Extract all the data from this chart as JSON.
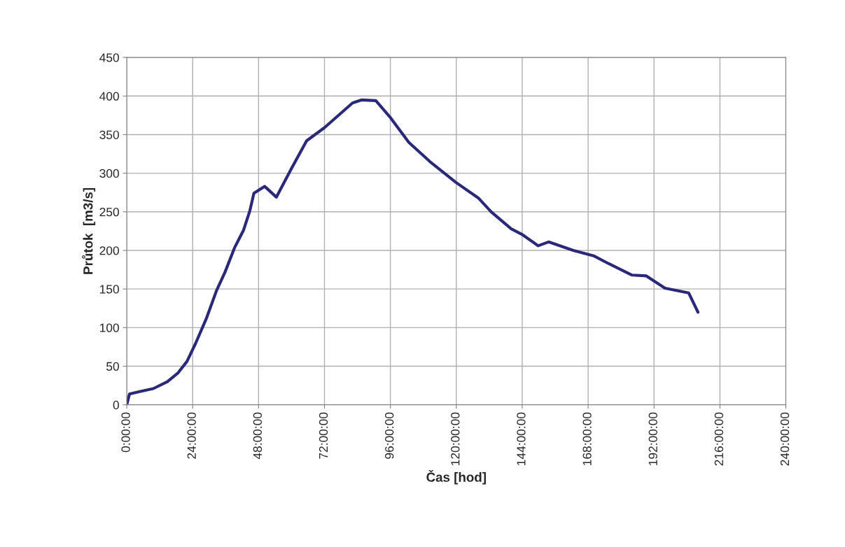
{
  "chart_data": {
    "type": "line",
    "xlabel": "Čas [hod]",
    "ylabel": "Průtok  [m3/s]",
    "xlim": [
      0,
      240
    ],
    "xticks": [
      {
        "value": 0,
        "label": "0:00:00"
      },
      {
        "value": 24,
        "label": "24:00:00"
      },
      {
        "value": 48,
        "label": "48:00:00"
      },
      {
        "value": 72,
        "label": "72:00:00"
      },
      {
        "value": 96,
        "label": "96:00:00"
      },
      {
        "value": 120,
        "label": "120:00:00"
      },
      {
        "value": 144,
        "label": "144:00:00"
      },
      {
        "value": 168,
        "label": "168:00:00"
      },
      {
        "value": 192,
        "label": "192:00:00"
      },
      {
        "value": 216,
        "label": "216:00:00"
      },
      {
        "value": 240,
        "label": "240:00:00"
      }
    ],
    "ylim": [
      0,
      450
    ],
    "yticks": [
      0,
      50,
      100,
      150,
      200,
      250,
      300,
      350,
      400,
      450
    ],
    "grid": true,
    "marker": "none",
    "line_style": "solid",
    "series": [
      {
        "color": "#2a2878",
        "x": [
          0,
          1,
          4.5,
          9.7,
          14.8,
          18.6,
          21.9,
          25,
          28.9,
          32.7,
          35.8,
          39.2,
          42.5,
          44.8,
          46.3,
          50.2,
          54.5,
          60.1,
          65.5,
          72,
          82.2,
          85.6,
          90.7,
          95.8,
          102.7,
          110.4,
          119.9,
          128,
          132.7,
          140,
          143.8,
          149.8,
          153.6,
          162.6,
          170,
          175.4,
          184,
          189.2,
          196,
          204.6,
          208
        ],
        "values": [
          0,
          14,
          17,
          21,
          30,
          41,
          56,
          79,
          111,
          148,
          172,
          203,
          226,
          251,
          274,
          283,
          269,
          307,
          342,
          359,
          391,
          395,
          394,
          373,
          340,
          315,
          288,
          268,
          250,
          228,
          221,
          206,
          211,
          200,
          193,
          183,
          168,
          167,
          151,
          145,
          120
        ]
      }
    ]
  }
}
